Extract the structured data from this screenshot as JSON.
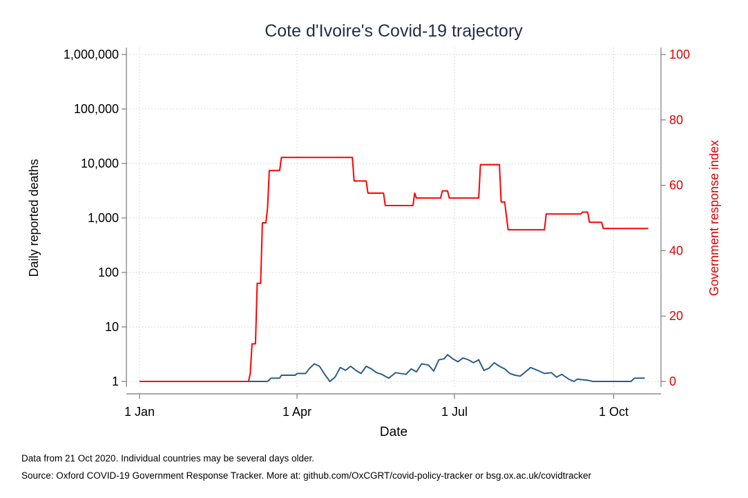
{
  "chart_data": {
    "type": "line",
    "title": "Cote d'Ivoire's Covid-19 trajectory",
    "xlabel": "Date",
    "ylabel_left": "Daily reported deaths",
    "ylabel_right": "Government response index",
    "x_ticks": [
      "1 Jan",
      "1 Apr",
      "1 Jul",
      "1 Oct"
    ],
    "y_left_scale": "log",
    "y_left_ticks": [
      "1",
      "10",
      "100",
      "1,000",
      "10,000",
      "100,000",
      "1,000,000"
    ],
    "y_left_range": [
      1,
      1000000
    ],
    "y_right_ticks": [
      "0",
      "20",
      "40",
      "60",
      "80",
      "100"
    ],
    "y_right_range": [
      0,
      100
    ],
    "grid": true,
    "colors": {
      "deaths": "#2b5d8c",
      "response": "#ff0000",
      "axis_right": "#e00000",
      "title": "#1f2d4d"
    },
    "series": [
      {
        "axis": "right",
        "points": [
          [
            "2020-01-01",
            0
          ],
          [
            "2020-03-02",
            0
          ],
          [
            "2020-03-04",
            0
          ],
          [
            "2020-03-05",
            2.5
          ],
          [
            "2020-03-06",
            11.5
          ],
          [
            "2020-03-08",
            11.5
          ],
          [
            "2020-03-09",
            30
          ],
          [
            "2020-03-11",
            30
          ],
          [
            "2020-03-12",
            48.5
          ],
          [
            "2020-03-14",
            48.5
          ],
          [
            "2020-03-15",
            53
          ],
          [
            "2020-03-16",
            64.5
          ],
          [
            "2020-03-22",
            64.5
          ],
          [
            "2020-03-23",
            68.5
          ],
          [
            "2020-05-03",
            68.5
          ],
          [
            "2020-05-04",
            61.3
          ],
          [
            "2020-05-11",
            61.3
          ],
          [
            "2020-05-12",
            57.6
          ],
          [
            "2020-05-21",
            57.6
          ],
          [
            "2020-05-22",
            53.8
          ],
          [
            "2020-06-07",
            53.8
          ],
          [
            "2020-06-08",
            57.6
          ],
          [
            "2020-06-09",
            56.1
          ],
          [
            "2020-06-23",
            56.1
          ],
          [
            "2020-06-24",
            58.3
          ],
          [
            "2020-06-27",
            58.3
          ],
          [
            "2020-06-28",
            56.1
          ],
          [
            "2020-07-15",
            56.1
          ],
          [
            "2020-07-16",
            66.3
          ],
          [
            "2020-07-27",
            66.3
          ],
          [
            "2020-07-28",
            54.9
          ],
          [
            "2020-07-30",
            54.9
          ],
          [
            "2020-08-01",
            46.4
          ],
          [
            "2020-08-22",
            46.4
          ],
          [
            "2020-08-23",
            51.2
          ],
          [
            "2020-09-12",
            51.2
          ],
          [
            "2020-09-13",
            51.8
          ],
          [
            "2020-09-16",
            51.8
          ],
          [
            "2020-09-17",
            48.7
          ],
          [
            "2020-09-24",
            48.7
          ],
          [
            "2020-09-25",
            46.8
          ],
          [
            "2020-10-21",
            46.8
          ]
        ]
      },
      {
        "axis": "left",
        "points": [
          [
            "2020-03-02",
            1
          ],
          [
            "2020-03-15",
            1
          ],
          [
            "2020-03-17",
            1.15
          ],
          [
            "2020-03-22",
            1.15
          ],
          [
            "2020-03-23",
            1.3
          ],
          [
            "2020-03-31",
            1.3
          ],
          [
            "2020-04-01",
            1.4
          ],
          [
            "2020-04-06",
            1.4
          ],
          [
            "2020-04-08",
            1.7
          ],
          [
            "2020-04-11",
            2.1
          ],
          [
            "2020-04-14",
            1.9
          ],
          [
            "2020-04-17",
            1.35
          ],
          [
            "2020-04-20",
            1.0
          ],
          [
            "2020-04-23",
            1.2
          ],
          [
            "2020-04-26",
            1.8
          ],
          [
            "2020-04-29",
            1.6
          ],
          [
            "2020-05-02",
            1.9
          ],
          [
            "2020-05-05",
            1.6
          ],
          [
            "2020-05-08",
            1.4
          ],
          [
            "2020-05-11",
            1.9
          ],
          [
            "2020-05-14",
            1.7
          ],
          [
            "2020-05-17",
            1.45
          ],
          [
            "2020-05-20",
            1.35
          ],
          [
            "2020-05-24",
            1.15
          ],
          [
            "2020-05-28",
            1.45
          ],
          [
            "2020-06-03",
            1.35
          ],
          [
            "2020-06-06",
            1.7
          ],
          [
            "2020-06-09",
            1.5
          ],
          [
            "2020-06-12",
            2.1
          ],
          [
            "2020-06-16",
            2.0
          ],
          [
            "2020-06-19",
            1.55
          ],
          [
            "2020-06-22",
            2.5
          ],
          [
            "2020-06-25",
            2.6
          ],
          [
            "2020-06-27",
            3.1
          ],
          [
            "2020-06-30",
            2.6
          ],
          [
            "2020-07-03",
            2.3
          ],
          [
            "2020-07-06",
            2.7
          ],
          [
            "2020-07-09",
            2.5
          ],
          [
            "2020-07-12",
            2.2
          ],
          [
            "2020-07-15",
            2.5
          ],
          [
            "2020-07-18",
            1.6
          ],
          [
            "2020-07-21",
            1.75
          ],
          [
            "2020-07-24",
            2.2
          ],
          [
            "2020-07-27",
            1.9
          ],
          [
            "2020-07-30",
            1.7
          ],
          [
            "2020-08-02",
            1.4
          ],
          [
            "2020-08-05",
            1.3
          ],
          [
            "2020-08-08",
            1.25
          ],
          [
            "2020-08-11",
            1.5
          ],
          [
            "2020-08-14",
            1.8
          ],
          [
            "2020-08-18",
            1.6
          ],
          [
            "2020-08-22",
            1.4
          ],
          [
            "2020-08-26",
            1.45
          ],
          [
            "2020-08-29",
            1.2
          ],
          [
            "2020-09-01",
            1.35
          ],
          [
            "2020-09-05",
            1.1
          ],
          [
            "2020-09-08",
            1.0
          ],
          [
            "2020-09-10",
            1.1
          ],
          [
            "2020-09-16",
            1.05
          ],
          [
            "2020-09-19",
            1.0
          ],
          [
            "2020-10-11",
            1.0
          ],
          [
            "2020-10-13",
            1.15
          ],
          [
            "2020-10-19",
            1.15
          ]
        ]
      }
    ]
  },
  "notes": {
    "line1": "Data from 21 Oct 2020. Individual countries may be several days older.",
    "line2": "Source: Oxford COVID-19 Government Response Tracker. More at: github.com/OxCGRT/covid-policy-tracker or bsg.ox.ac.uk/covidtracker"
  }
}
